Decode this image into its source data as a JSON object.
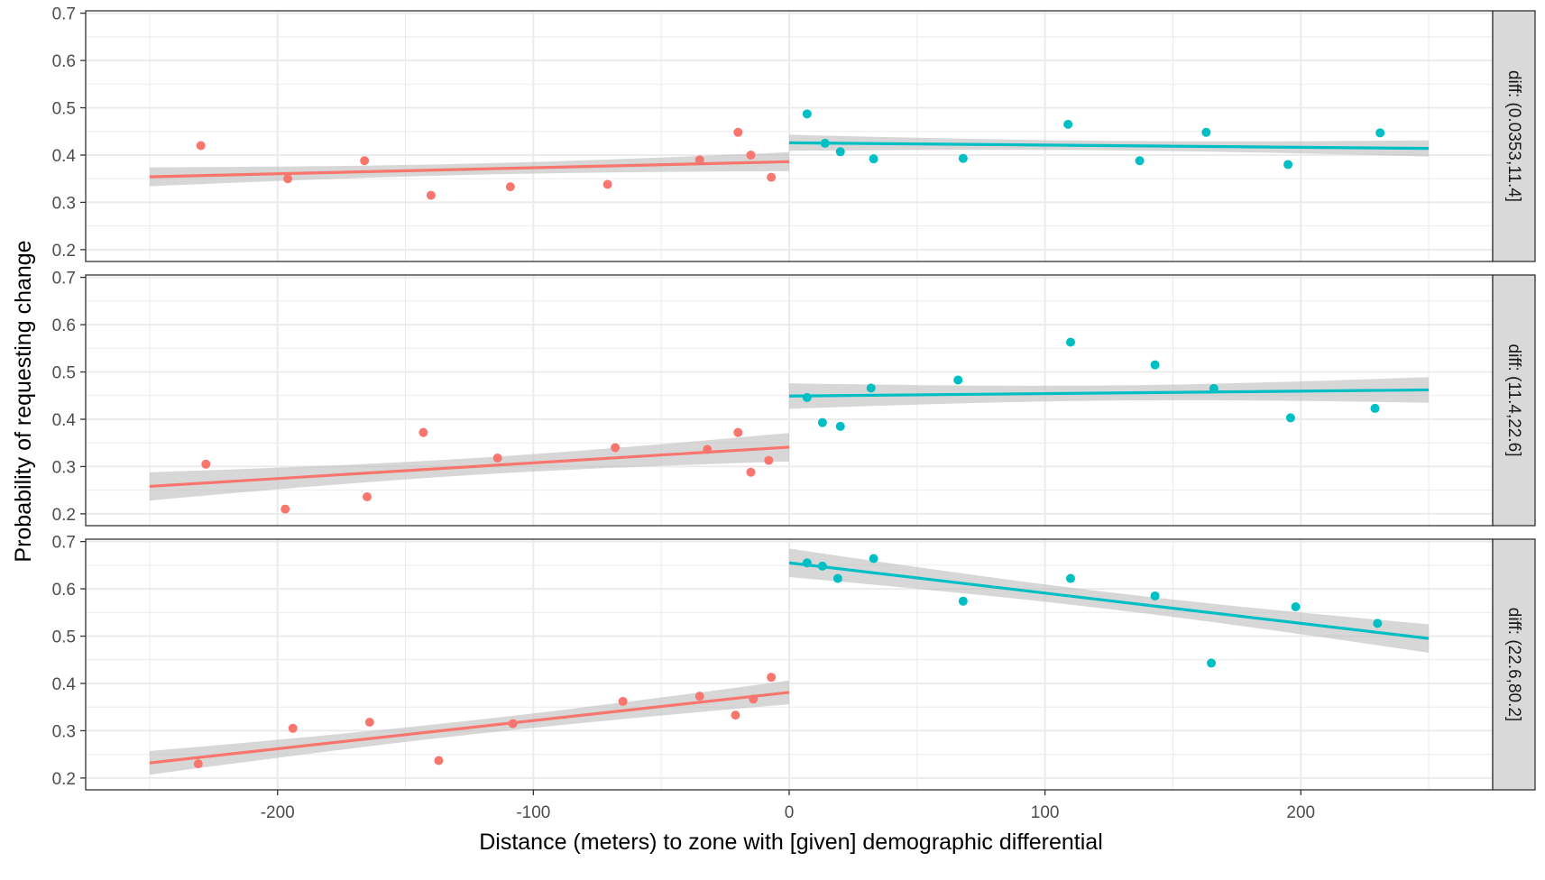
{
  "chart_data": {
    "type": "scatter",
    "xlabel": "Distance (meters) to zone with [given] demographic differential",
    "ylabel": "Probability of requesting change",
    "xlim": [
      -275,
      275
    ],
    "ylim": [
      0.175,
      0.705
    ],
    "x_ticks": [
      -200,
      -100,
      0,
      100,
      200
    ],
    "x_tick_labels": [
      "-200",
      "-100",
      "0",
      "100",
      "200"
    ],
    "y_ticks": [
      0.2,
      0.3,
      0.4,
      0.5,
      0.6,
      0.7
    ],
    "y_tick_labels": [
      "0.2",
      "0.3",
      "0.4",
      "0.5",
      "0.6",
      "0.7"
    ],
    "grid": true,
    "legend": "none",
    "colors": {
      "left": "#F8766D",
      "right": "#00BFC4",
      "ribbon": "#BEBEBE",
      "strip_fill": "#D9D9D9",
      "grid": "#EBEBEB"
    },
    "panels": [
      {
        "strip": "diff: (0.0353,11.4]",
        "series": [
          {
            "side": "left",
            "points": [
              [
                -230,
                0.42
              ],
              [
                -196,
                0.35
              ],
              [
                -166,
                0.388
              ],
              [
                -140,
                0.315
              ],
              [
                -109,
                0.333
              ],
              [
                -71,
                0.338
              ],
              [
                -35,
                0.39
              ],
              [
                -20,
                0.448
              ],
              [
                -15,
                0.4
              ],
              [
                -7,
                0.353
              ]
            ],
            "fit": {
              "x": [
                -250,
                0
              ],
              "y": [
                0.354,
                0.386
              ],
              "se": 0.02
            }
          },
          {
            "side": "right",
            "points": [
              [
                7,
                0.487
              ],
              [
                14,
                0.425
              ],
              [
                20,
                0.407
              ],
              [
                33,
                0.392
              ],
              [
                68,
                0.393
              ],
              [
                109,
                0.465
              ],
              [
                137,
                0.388
              ],
              [
                163,
                0.448
              ],
              [
                195,
                0.38
              ],
              [
                231,
                0.447
              ]
            ],
            "fit": {
              "x": [
                0,
                250
              ],
              "y": [
                0.426,
                0.414
              ],
              "se": 0.017
            }
          }
        ]
      },
      {
        "strip": "diff: (11.4,22.6]",
        "series": [
          {
            "side": "left",
            "points": [
              [
                -228,
                0.305
              ],
              [
                -197,
                0.21
              ],
              [
                -165,
                0.236
              ],
              [
                -143,
                0.372
              ],
              [
                -114,
                0.318
              ],
              [
                -68,
                0.34
              ],
              [
                -32,
                0.336
              ],
              [
                -20,
                0.372
              ],
              [
                -15,
                0.288
              ],
              [
                -8,
                0.313
              ]
            ],
            "fit": {
              "x": [
                -250,
                0
              ],
              "y": [
                0.258,
                0.341
              ],
              "se": 0.03
            }
          },
          {
            "side": "right",
            "points": [
              [
                7,
                0.446
              ],
              [
                13,
                0.393
              ],
              [
                20,
                0.385
              ],
              [
                32,
                0.466
              ],
              [
                66,
                0.483
              ],
              [
                110,
                0.563
              ],
              [
                143,
                0.515
              ],
              [
                166,
                0.465
              ],
              [
                196,
                0.403
              ],
              [
                229,
                0.423
              ]
            ],
            "fit": {
              "x": [
                0,
                250
              ],
              "y": [
                0.449,
                0.462
              ],
              "se": 0.027
            }
          }
        ]
      },
      {
        "strip": "diff: (22.6,80.2]",
        "series": [
          {
            "side": "left",
            "points": [
              [
                -231,
                0.23
              ],
              [
                -194,
                0.305
              ],
              [
                -164,
                0.318
              ],
              [
                -137,
                0.237
              ],
              [
                -108,
                0.315
              ],
              [
                -65,
                0.362
              ],
              [
                -35,
                0.373
              ],
              [
                -21,
                0.333
              ],
              [
                -14,
                0.367
              ],
              [
                -7,
                0.413
              ]
            ],
            "fit": {
              "x": [
                -250,
                0
              ],
              "y": [
                0.232,
                0.381
              ],
              "se": 0.025
            }
          },
          {
            "side": "right",
            "points": [
              [
                7,
                0.655
              ],
              [
                13,
                0.648
              ],
              [
                19,
                0.622
              ],
              [
                33,
                0.664
              ],
              [
                68,
                0.574
              ],
              [
                110,
                0.622
              ],
              [
                143,
                0.585
              ],
              [
                165,
                0.443
              ],
              [
                198,
                0.562
              ],
              [
                230,
                0.527
              ]
            ],
            "fit": {
              "x": [
                0,
                250
              ],
              "y": [
                0.655,
                0.495
              ],
              "se": 0.03
            }
          }
        ]
      }
    ]
  }
}
